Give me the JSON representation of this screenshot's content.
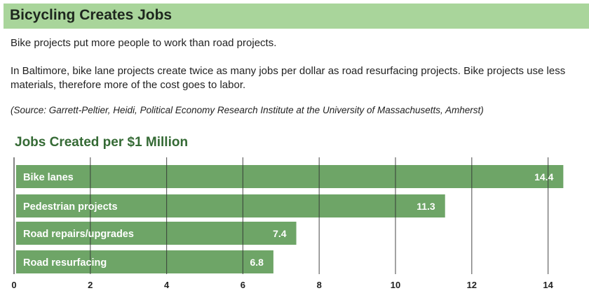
{
  "header": {
    "title": "Bicycling Creates Jobs"
  },
  "text": {
    "lead": "Bike projects put more people to work than road projects.",
    "body": "In Baltimore, bike lane projects create twice as many jobs per dollar as road resurfacing projects. Bike projects use less materials, therefore more of the cost goes to labor.",
    "source": "(Source: Garrett-Peltier, Heidi, Political Economy Research Institute at the University of Massachusetts, Amherst)"
  },
  "colors": {
    "bar": "#6ea567",
    "header": "#a9d59b",
    "title": "#356a35"
  },
  "chart_data": {
    "type": "bar",
    "orientation": "horizontal",
    "title": "Jobs Created per $1 Million",
    "categories": [
      "Bike lanes",
      "Pedestrian projects",
      "Road repairs/upgrades",
      "Road resurfacing"
    ],
    "values": [
      14.4,
      11.3,
      7.4,
      6.8
    ],
    "xlim": [
      0,
      14
    ],
    "xticks": [
      0,
      2,
      4,
      6,
      8,
      10,
      12,
      14
    ],
    "xticklabels": [
      "0",
      "2",
      "4",
      "6",
      "8",
      "10",
      "12",
      "14"
    ],
    "grid": true,
    "xlabel": "",
    "ylabel": ""
  }
}
